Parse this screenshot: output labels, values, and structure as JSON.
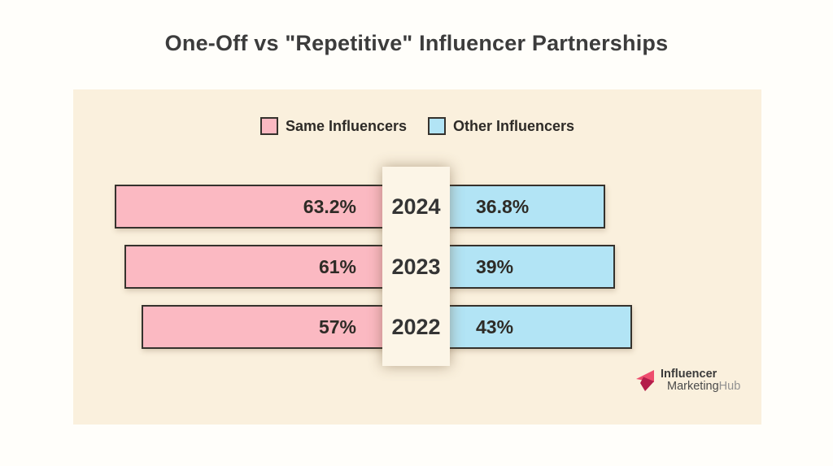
{
  "title": "One-Off vs \"Repetitive\" Influencer Partnerships",
  "legend": [
    {
      "label": "Same Influencers",
      "color": "#fbb9c2"
    },
    {
      "label": "Other Influencers",
      "color": "#b2e4f5"
    }
  ],
  "chart_data": {
    "type": "bar",
    "orientation": "horizontal-diverging",
    "title": "One-Off vs \"Repetitive\" Influencer Partnerships",
    "categories": [
      "2024",
      "2023",
      "2022"
    ],
    "series": [
      {
        "name": "Same Influencers",
        "side": "left",
        "color": "#fbb9c2",
        "values": [
          63.2,
          61,
          57
        ],
        "labels": [
          "63.2%",
          "61%",
          "57%"
        ]
      },
      {
        "name": "Other Influencers",
        "side": "right",
        "color": "#b2e4f5",
        "values": [
          36.8,
          39,
          43
        ],
        "labels": [
          "36.8%",
          "39%",
          "43%"
        ]
      }
    ],
    "unit": "%",
    "value_labels": true,
    "legend_position": "top",
    "xlim": [
      0,
      100
    ],
    "grid": false
  },
  "logo": {
    "line1": "Influencer",
    "line2_dark": "Marketing",
    "line2_light": "Hub",
    "icon_color_light": "#ee4d6e",
    "icon_color_dark": "#b31e4b"
  },
  "colors": {
    "page_background": "#fffefa",
    "card_background": "#faf0dd",
    "band_background": "#fcf5e7",
    "bar_border": "#35322d",
    "text": "#2e2b26"
  }
}
